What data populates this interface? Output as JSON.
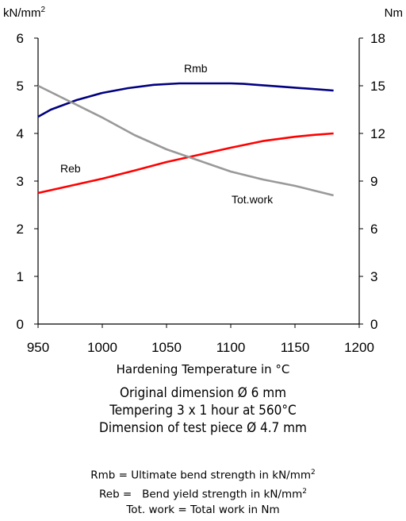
{
  "chart_data": {
    "type": "line",
    "left_unit": "kN/mm",
    "left_unit_sup": "2",
    "right_unit": "Nm",
    "xlabel": "Hardening Temperature in °C",
    "x_ticks": [
      950,
      1000,
      1050,
      1100,
      1150,
      1200
    ],
    "xlim": [
      950,
      1200
    ],
    "y_left_ticks": [
      0,
      1,
      2,
      3,
      4,
      5,
      6
    ],
    "y_left_lim": [
      0,
      6
    ],
    "y_right_ticks": [
      0,
      3,
      6,
      9,
      12,
      15,
      18
    ],
    "y_right_lim": [
      0,
      18
    ],
    "grid": false,
    "series": [
      {
        "name": "Rmb",
        "axis": "left",
        "color": "#000080",
        "x": [
          950,
          960,
          980,
          1000,
          1020,
          1040,
          1060,
          1080,
          1100,
          1110,
          1120,
          1140,
          1160,
          1180
        ],
        "y": [
          4.35,
          4.5,
          4.7,
          4.85,
          4.95,
          5.02,
          5.05,
          5.05,
          5.05,
          5.04,
          5.02,
          4.98,
          4.94,
          4.9
        ]
      },
      {
        "name": "Reb",
        "axis": "left",
        "color": "#ff0000",
        "x": [
          950,
          975,
          1000,
          1025,
          1050,
          1075,
          1100,
          1125,
          1150,
          1165,
          1180
        ],
        "y": [
          2.75,
          2.9,
          3.05,
          3.22,
          3.4,
          3.55,
          3.7,
          3.84,
          3.93,
          3.97,
          4.0
        ]
      },
      {
        "name": "Tot.work",
        "axis": "right",
        "color": "#999999",
        "x": [
          950,
          975,
          1000,
          1025,
          1050,
          1075,
          1100,
          1125,
          1150,
          1165,
          1180
        ],
        "y": [
          15.0,
          14.0,
          13.0,
          11.9,
          11.0,
          10.3,
          9.6,
          9.1,
          8.7,
          8.4,
          8.1
        ]
      }
    ]
  },
  "notes": [
    "Original dimension Ø 6 mm",
    "Tempering 3 x 1 hour at 560°C",
    "Dimension of test piece Ø 4.7 mm"
  ],
  "legend": {
    "rmb": {
      "text": "Rmb = Ultimate bend strength in kN/mm",
      "sup": "2"
    },
    "reb": {
      "text": "Reb =   Bend yield strength in kN/mm",
      "sup": "2"
    },
    "totwork": {
      "text": "Tot. work = Total work in Nm"
    }
  }
}
